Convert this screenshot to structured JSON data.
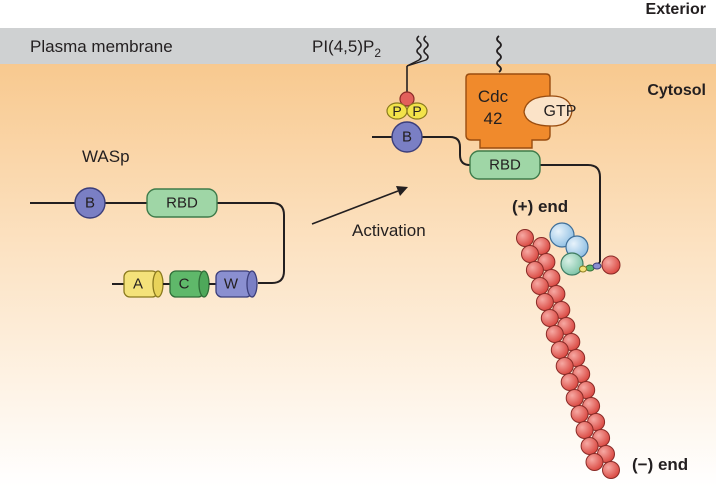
{
  "labels": {
    "exterior": "Exterior",
    "cytosol": "Cytosol",
    "membrane": "Plasma membrane",
    "pip2_main": "PI(4,5)P",
    "pip2_sub": "2",
    "wasp": "WASp",
    "activation": "Activation",
    "plus_end": "(+) end",
    "minus_end": "(−) end"
  },
  "inactive_domains": {
    "b": "B",
    "rbd": "RBD",
    "a": "A",
    "c": "C",
    "w": "W"
  },
  "active_domains": {
    "p1": "P",
    "p2": "P",
    "b": "B",
    "rbd": "RBD",
    "cdc_line1": "Cdc",
    "cdc_line2": "42",
    "gtp": "GTP"
  },
  "colors": {
    "membrane": "#cfd1d2",
    "cytosol_top": "#f8c98f",
    "cytosol_bottom": "#ffffff",
    "b_domain": "#7a7fc4",
    "rbd_domain": "#9fd6a6",
    "a_domain": "#f4e27a",
    "c_domain": "#5fb86a",
    "w_domain": "#8a8fd0",
    "phosphate": "#f2e34a",
    "cdc42": "#f08a2c",
    "actin": "#e2605b",
    "arp": "#a9cde9"
  }
}
